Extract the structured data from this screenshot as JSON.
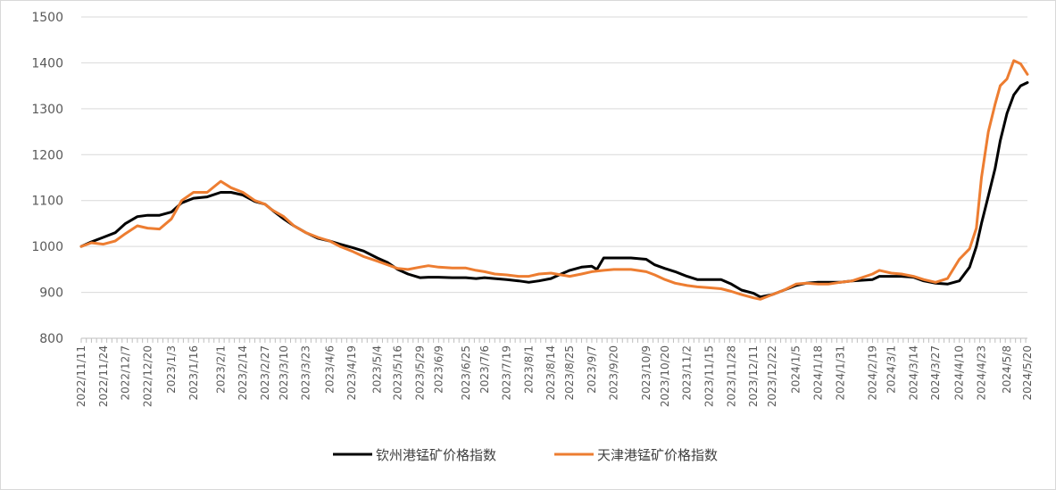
{
  "chart_data": {
    "type": "line",
    "title": "",
    "xlabel": "",
    "ylabel": "",
    "ylim": [
      800,
      1500
    ],
    "yticks": [
      800,
      900,
      1000,
      1100,
      1200,
      1300,
      1400,
      1500
    ],
    "grid": "horizontal",
    "legend_position": "bottom",
    "x_range": [
      "2022-11-11",
      "2024-05-20"
    ],
    "x_tick_labels": [
      "2022/11/11",
      "2022/11/24",
      "2022/12/7",
      "2022/12/20",
      "2023/1/3",
      "2023/1/16",
      "2023/2/1",
      "2023/2/14",
      "2023/2/27",
      "2023/3/10",
      "2023/3/23",
      "2023/4/6",
      "2023/4/19",
      "2023/5/4",
      "2023/5/16",
      "2023/5/29",
      "2023/6/9",
      "2023/6/25",
      "2023/7/6",
      "2023/7/19",
      "2023/8/1",
      "2023/8/14",
      "2023/8/25",
      "2023/9/7",
      "2023/9/20",
      "2023/10/9",
      "2023/10/20",
      "2023/11/2",
      "2023/11/15",
      "2023/11/28",
      "2023/12/11",
      "2023/12/22",
      "2024/1/5",
      "2024/1/18",
      "2024/1/31",
      "2024/2/19",
      "2024/3/1",
      "2024/3/14",
      "2024/3/27",
      "2024/4/10",
      "2024/4/23",
      "2024/5/8",
      "2024/5/20"
    ],
    "series": [
      {
        "name": "钦州港锰矿价格指数",
        "color": "#000000",
        "points": [
          [
            "2022-11-11",
            1000
          ],
          [
            "2022-11-17",
            1010
          ],
          [
            "2022-11-24",
            1020
          ],
          [
            "2022-12-01",
            1030
          ],
          [
            "2022-12-07",
            1050
          ],
          [
            "2022-12-14",
            1065
          ],
          [
            "2022-12-20",
            1068
          ],
          [
            "2022-12-27",
            1068
          ],
          [
            "2023-01-03",
            1075
          ],
          [
            "2023-01-09",
            1095
          ],
          [
            "2023-01-16",
            1105
          ],
          [
            "2023-01-24",
            1108
          ],
          [
            "2023-02-01",
            1118
          ],
          [
            "2023-02-07",
            1118
          ],
          [
            "2023-02-14",
            1112
          ],
          [
            "2023-02-21",
            1098
          ],
          [
            "2023-02-27",
            1092
          ],
          [
            "2023-03-03",
            1080
          ],
          [
            "2023-03-10",
            1060
          ],
          [
            "2023-03-16",
            1045
          ],
          [
            "2023-03-23",
            1030
          ],
          [
            "2023-03-30",
            1018
          ],
          [
            "2023-04-06",
            1012
          ],
          [
            "2023-04-12",
            1005
          ],
          [
            "2023-04-19",
            998
          ],
          [
            "2023-04-26",
            990
          ],
          [
            "2023-05-04",
            975
          ],
          [
            "2023-05-10",
            965
          ],
          [
            "2023-05-16",
            950
          ],
          [
            "2023-05-22",
            940
          ],
          [
            "2023-05-29",
            932
          ],
          [
            "2023-06-03",
            933
          ],
          [
            "2023-06-09",
            933
          ],
          [
            "2023-06-17",
            932
          ],
          [
            "2023-06-25",
            932
          ],
          [
            "2023-07-01",
            930
          ],
          [
            "2023-07-06",
            932
          ],
          [
            "2023-07-12",
            930
          ],
          [
            "2023-07-19",
            928
          ],
          [
            "2023-07-26",
            925
          ],
          [
            "2023-08-01",
            922
          ],
          [
            "2023-08-07",
            925
          ],
          [
            "2023-08-14",
            930
          ],
          [
            "2023-08-20",
            940
          ],
          [
            "2023-08-25",
            948
          ],
          [
            "2023-09-01",
            955
          ],
          [
            "2023-09-07",
            957
          ],
          [
            "2023-09-10",
            950
          ],
          [
            "2023-09-14",
            975
          ],
          [
            "2023-09-20",
            975
          ],
          [
            "2023-09-30",
            975
          ],
          [
            "2023-10-09",
            972
          ],
          [
            "2023-10-14",
            960
          ],
          [
            "2023-10-20",
            952
          ],
          [
            "2023-10-26",
            945
          ],
          [
            "2023-11-02",
            935
          ],
          [
            "2023-11-08",
            928
          ],
          [
            "2023-11-15",
            928
          ],
          [
            "2023-11-22",
            928
          ],
          [
            "2023-11-28",
            918
          ],
          [
            "2023-12-04",
            905
          ],
          [
            "2023-12-11",
            898
          ],
          [
            "2023-12-15",
            890
          ],
          [
            "2023-12-22",
            895
          ],
          [
            "2023-12-29",
            905
          ],
          [
            "2024-01-05",
            915
          ],
          [
            "2024-01-11",
            920
          ],
          [
            "2024-01-18",
            922
          ],
          [
            "2024-01-24",
            922
          ],
          [
            "2024-01-31",
            922
          ],
          [
            "2024-02-07",
            925
          ],
          [
            "2024-02-19",
            928
          ],
          [
            "2024-02-23",
            935
          ],
          [
            "2024-03-01",
            935
          ],
          [
            "2024-03-07",
            935
          ],
          [
            "2024-03-14",
            933
          ],
          [
            "2024-03-20",
            925
          ],
          [
            "2024-03-27",
            920
          ],
          [
            "2024-04-03",
            918
          ],
          [
            "2024-04-10",
            925
          ],
          [
            "2024-04-16",
            955
          ],
          [
            "2024-04-20",
            1000
          ],
          [
            "2024-04-23",
            1050
          ],
          [
            "2024-04-27",
            1110
          ],
          [
            "2024-05-01",
            1170
          ],
          [
            "2024-05-04",
            1230
          ],
          [
            "2024-05-08",
            1290
          ],
          [
            "2024-05-12",
            1330
          ],
          [
            "2024-05-16",
            1350
          ],
          [
            "2024-05-20",
            1357
          ]
        ]
      },
      {
        "name": "天津港锰矿价格指数",
        "color": "#ed7d31",
        "points": [
          [
            "2022-11-11",
            1000
          ],
          [
            "2022-11-17",
            1008
          ],
          [
            "2022-11-24",
            1005
          ],
          [
            "2022-12-01",
            1012
          ],
          [
            "2022-12-07",
            1028
          ],
          [
            "2022-12-14",
            1045
          ],
          [
            "2022-12-20",
            1040
          ],
          [
            "2022-12-27",
            1038
          ],
          [
            "2023-01-03",
            1060
          ],
          [
            "2023-01-09",
            1100
          ],
          [
            "2023-01-16",
            1118
          ],
          [
            "2023-01-24",
            1118
          ],
          [
            "2023-02-01",
            1142
          ],
          [
            "2023-02-07",
            1128
          ],
          [
            "2023-02-14",
            1118
          ],
          [
            "2023-02-21",
            1100
          ],
          [
            "2023-02-27",
            1092
          ],
          [
            "2023-03-03",
            1080
          ],
          [
            "2023-03-10",
            1065
          ],
          [
            "2023-03-16",
            1045
          ],
          [
            "2023-03-23",
            1030
          ],
          [
            "2023-03-30",
            1020
          ],
          [
            "2023-04-06",
            1012
          ],
          [
            "2023-04-12",
            1000
          ],
          [
            "2023-04-19",
            990
          ],
          [
            "2023-04-26",
            978
          ],
          [
            "2023-05-04",
            968
          ],
          [
            "2023-05-10",
            960
          ],
          [
            "2023-05-16",
            952
          ],
          [
            "2023-05-22",
            950
          ],
          [
            "2023-05-29",
            955
          ],
          [
            "2023-06-03",
            958
          ],
          [
            "2023-06-09",
            955
          ],
          [
            "2023-06-17",
            953
          ],
          [
            "2023-06-25",
            953
          ],
          [
            "2023-07-01",
            948
          ],
          [
            "2023-07-06",
            945
          ],
          [
            "2023-07-12",
            940
          ],
          [
            "2023-07-19",
            938
          ],
          [
            "2023-07-26",
            935
          ],
          [
            "2023-08-01",
            935
          ],
          [
            "2023-08-07",
            940
          ],
          [
            "2023-08-14",
            942
          ],
          [
            "2023-08-20",
            938
          ],
          [
            "2023-08-25",
            935
          ],
          [
            "2023-09-01",
            940
          ],
          [
            "2023-09-07",
            945
          ],
          [
            "2023-09-14",
            948
          ],
          [
            "2023-09-20",
            950
          ],
          [
            "2023-09-30",
            950
          ],
          [
            "2023-10-09",
            945
          ],
          [
            "2023-10-14",
            938
          ],
          [
            "2023-10-20",
            928
          ],
          [
            "2023-10-26",
            920
          ],
          [
            "2023-11-02",
            915
          ],
          [
            "2023-11-08",
            912
          ],
          [
            "2023-11-15",
            910
          ],
          [
            "2023-11-22",
            908
          ],
          [
            "2023-11-28",
            902
          ],
          [
            "2023-12-04",
            895
          ],
          [
            "2023-12-11",
            888
          ],
          [
            "2023-12-15",
            885
          ],
          [
            "2023-12-22",
            895
          ],
          [
            "2023-12-29",
            905
          ],
          [
            "2024-01-05",
            918
          ],
          [
            "2024-01-11",
            920
          ],
          [
            "2024-01-18",
            918
          ],
          [
            "2024-01-24",
            918
          ],
          [
            "2024-01-31",
            922
          ],
          [
            "2024-02-07",
            925
          ],
          [
            "2024-02-19",
            940
          ],
          [
            "2024-02-23",
            948
          ],
          [
            "2024-03-01",
            942
          ],
          [
            "2024-03-07",
            940
          ],
          [
            "2024-03-14",
            935
          ],
          [
            "2024-03-20",
            928
          ],
          [
            "2024-03-27",
            922
          ],
          [
            "2024-04-03",
            930
          ],
          [
            "2024-04-10",
            972
          ],
          [
            "2024-04-16",
            995
          ],
          [
            "2024-04-20",
            1040
          ],
          [
            "2024-04-23",
            1150
          ],
          [
            "2024-04-27",
            1250
          ],
          [
            "2024-05-01",
            1310
          ],
          [
            "2024-05-04",
            1350
          ],
          [
            "2024-05-08",
            1365
          ],
          [
            "2024-05-12",
            1405
          ],
          [
            "2024-05-16",
            1398
          ],
          [
            "2024-05-20",
            1375
          ]
        ]
      }
    ]
  }
}
